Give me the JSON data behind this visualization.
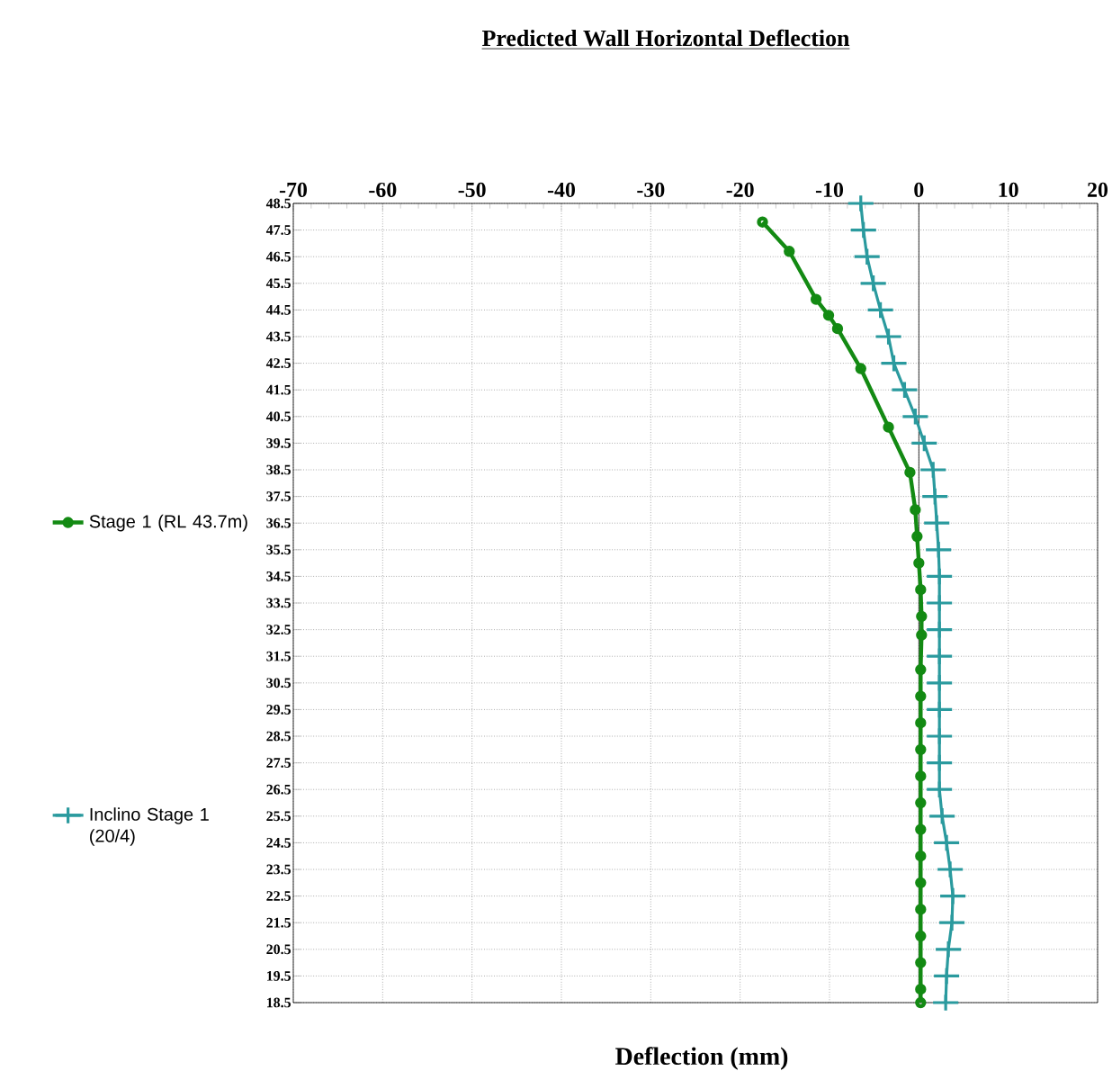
{
  "chart_data": {
    "type": "line",
    "title": "Predicted Wall Horizontal Deflection",
    "xlabel": "Deflection (mm)",
    "xlim": [
      -70,
      20
    ],
    "xticks": [
      -70,
      -60,
      -50,
      -40,
      -30,
      -20,
      -10,
      0,
      10,
      20
    ],
    "ylim": [
      18.5,
      48.5
    ],
    "yticks": [
      18.5,
      19.5,
      20.5,
      21.5,
      22.5,
      23.5,
      24.5,
      25.5,
      26.5,
      27.5,
      28.5,
      29.5,
      30.5,
      31.5,
      32.5,
      33.5,
      34.5,
      35.5,
      36.5,
      37.5,
      38.5,
      39.5,
      40.5,
      41.5,
      42.5,
      43.5,
      44.5,
      45.5,
      46.5,
      47.5,
      48.5
    ],
    "grid": true,
    "legend": "left",
    "series": [
      {
        "name": "Stage 1 (RL 43.7m)",
        "color": "#138a13",
        "marker": "circle",
        "x": [
          -17.5,
          -14.5,
          -11.5,
          -10.1,
          -9.1,
          -6.5,
          -3.4,
          -1.0,
          -0.4,
          -0.2,
          0,
          0.2,
          0.3,
          0.3,
          0.2,
          0.2,
          0.2,
          0.2,
          0.2,
          0.2,
          0.2,
          0.2,
          0.2,
          0.2,
          0.2,
          0.2,
          0.2,
          0.2
        ],
        "values": [
          47.8,
          46.7,
          44.9,
          44.3,
          43.8,
          42.3,
          40.1,
          38.4,
          37.0,
          36.0,
          35.0,
          34.0,
          33.0,
          32.3,
          31.0,
          30.0,
          29.0,
          28.0,
          27.0,
          26.0,
          25.0,
          24.0,
          23.0,
          22.0,
          21.0,
          20.0,
          19.0,
          18.5
        ]
      },
      {
        "name": "Inclino Stage 1 (20/4)",
        "color": "#2a9a9e",
        "marker": "cross",
        "x": [
          -6.5,
          -6.2,
          -5.8,
          -5.1,
          -4.3,
          -3.4,
          -2.8,
          -1.6,
          -0.4,
          0.6,
          1.6,
          1.8,
          2.0,
          2.2,
          2.3,
          2.3,
          2.3,
          2.3,
          2.3,
          2.3,
          2.3,
          2.3,
          2.3,
          2.6,
          3.1,
          3.5,
          3.8,
          3.7,
          3.3,
          3.1,
          3.0
        ],
        "values": [
          48.5,
          47.5,
          46.5,
          45.5,
          44.5,
          43.5,
          42.5,
          41.5,
          40.5,
          39.5,
          38.5,
          37.5,
          36.5,
          35.5,
          34.5,
          33.5,
          32.5,
          31.5,
          30.5,
          29.5,
          28.5,
          27.5,
          26.5,
          25.5,
          24.5,
          23.5,
          22.5,
          21.5,
          20.5,
          19.5,
          18.5
        ]
      }
    ]
  }
}
